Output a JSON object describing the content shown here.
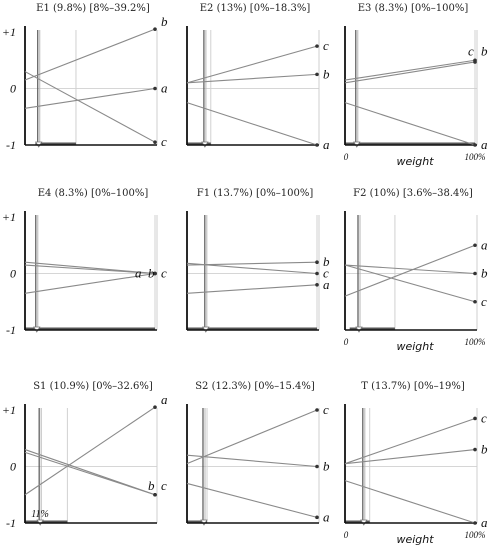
{
  "chart_data": [
    {
      "type": "line",
      "title": "E1 (9.8%) [8%–39.2%]",
      "x": [
        0,
        100
      ],
      "xlim": [
        0,
        100
      ],
      "ylim": [
        -1,
        1
      ],
      "marker": 9.8,
      "range": [
        8,
        39.2
      ],
      "y_ticks": [
        "+1",
        "0",
        "-1"
      ],
      "x_ticks": [],
      "xlabel": "",
      "series": [
        {
          "name": "a",
          "values": [
            -0.35,
            0.0
          ]
        },
        {
          "name": "b",
          "values": [
            0.15,
            1.05
          ]
        },
        {
          "name": "c",
          "values": [
            0.3,
            -0.95
          ]
        }
      ]
    },
    {
      "type": "line",
      "title": "E2 (13%) [0%–18.3%]",
      "x": [
        0,
        100
      ],
      "xlim": [
        0,
        100
      ],
      "ylim": [
        -1,
        1
      ],
      "marker": 13,
      "range": [
        0,
        18.3
      ],
      "y_ticks": [],
      "x_ticks": [],
      "xlabel": "",
      "series": [
        {
          "name": "a",
          "values": [
            -0.25,
            -1.0
          ]
        },
        {
          "name": "b",
          "values": [
            0.1,
            0.25
          ]
        },
        {
          "name": "c",
          "values": [
            0.1,
            0.75
          ]
        }
      ]
    },
    {
      "type": "line",
      "title": "E3 (8.3%) [0%–100%]",
      "x": [
        0,
        100
      ],
      "xlim": [
        0,
        100
      ],
      "ylim": [
        -1,
        1
      ],
      "marker": 8.3,
      "range": [
        0,
        100
      ],
      "y_ticks": [],
      "x_ticks": [
        "0",
        "100%"
      ],
      "xlabel": "weight",
      "series": [
        {
          "name": "a",
          "values": [
            -0.25,
            -1.0
          ]
        },
        {
          "name": "b",
          "values": [
            0.1,
            0.47
          ]
        },
        {
          "name": "c",
          "values": [
            0.15,
            0.5
          ]
        }
      ]
    },
    {
      "type": "line",
      "title": "E4 (8.3%) [0%–100%]",
      "x": [
        0,
        100
      ],
      "xlim": [
        0,
        100
      ],
      "ylim": [
        -1,
        1
      ],
      "marker": 8.3,
      "range": [
        0,
        100
      ],
      "y_ticks": [
        "+1",
        "0",
        "-1"
      ],
      "x_ticks": [],
      "xlabel": "",
      "series": [
        {
          "name": "a",
          "values": [
            -0.35,
            0.0
          ]
        },
        {
          "name": "b",
          "values": [
            0.15,
            0.0
          ]
        },
        {
          "name": "c",
          "values": [
            0.2,
            0.0
          ]
        }
      ]
    },
    {
      "type": "line",
      "title": "F1 (13.7%) [0%–100%]",
      "x": [
        0,
        100
      ],
      "xlim": [
        0,
        100
      ],
      "ylim": [
        -1,
        1
      ],
      "marker": 13.7,
      "range": [
        0,
        100
      ],
      "y_ticks": [],
      "x_ticks": [],
      "xlabel": "",
      "series": [
        {
          "name": "a",
          "values": [
            -0.35,
            -0.2
          ]
        },
        {
          "name": "b",
          "values": [
            0.15,
            0.2
          ]
        },
        {
          "name": "c",
          "values": [
            0.18,
            0.0
          ]
        }
      ]
    },
    {
      "type": "line",
      "title": "F2 (10%) [3.6%–38.4%]",
      "x": [
        0,
        100
      ],
      "xlim": [
        0,
        100
      ],
      "ylim": [
        -1,
        1
      ],
      "marker": 10,
      "range": [
        3.6,
        38.4
      ],
      "y_ticks": [],
      "x_ticks": [
        "0",
        "100%"
      ],
      "xlabel": "weight",
      "series": [
        {
          "name": "a",
          "values": [
            -0.4,
            0.5
          ]
        },
        {
          "name": "b",
          "values": [
            0.15,
            0.0
          ]
        },
        {
          "name": "c",
          "values": [
            0.15,
            -0.5
          ]
        }
      ]
    },
    {
      "type": "line",
      "title": "S1 (10.9%) [0%–32.6%]",
      "x": [
        0,
        100
      ],
      "xlim": [
        0,
        100
      ],
      "ylim": [
        -1,
        1
      ],
      "marker": 10.9,
      "range": [
        0,
        32.6
      ],
      "y_ticks": [
        "+1",
        "0",
        "-1"
      ],
      "x_ticks": [],
      "xlabel": "",
      "annotation": "11%",
      "series": [
        {
          "name": "a",
          "values": [
            -0.5,
            1.05
          ]
        },
        {
          "name": "b",
          "values": [
            0.3,
            -0.5
          ]
        },
        {
          "name": "c",
          "values": [
            0.25,
            -0.5
          ]
        }
      ]
    },
    {
      "type": "line",
      "title": "S2 (12.3%) [0%–15.4%]",
      "x": [
        0,
        100
      ],
      "xlim": [
        0,
        100
      ],
      "ylim": [
        -1,
        1
      ],
      "marker": 12.3,
      "range": [
        0,
        15.4
      ],
      "y_ticks": [],
      "x_ticks": [],
      "xlabel": "",
      "series": [
        {
          "name": "a",
          "values": [
            -0.3,
            -0.9
          ]
        },
        {
          "name": "b",
          "values": [
            0.2,
            0.0
          ]
        },
        {
          "name": "c",
          "values": [
            0.05,
            1.0
          ]
        }
      ]
    },
    {
      "type": "line",
      "title": "T (13.7%) [0%–19%]",
      "x": [
        0,
        100
      ],
      "xlim": [
        0,
        100
      ],
      "ylim": [
        -1,
        1
      ],
      "marker": 13.7,
      "range": [
        0,
        19
      ],
      "y_ticks": [],
      "x_ticks": [
        "0",
        "100%"
      ],
      "xlabel": "weight",
      "series": [
        {
          "name": "a",
          "values": [
            -0.25,
            -1.0
          ]
        },
        {
          "name": "b",
          "values": [
            0.05,
            0.3
          ]
        },
        {
          "name": "c",
          "values": [
            0.05,
            0.85
          ]
        }
      ]
    }
  ]
}
